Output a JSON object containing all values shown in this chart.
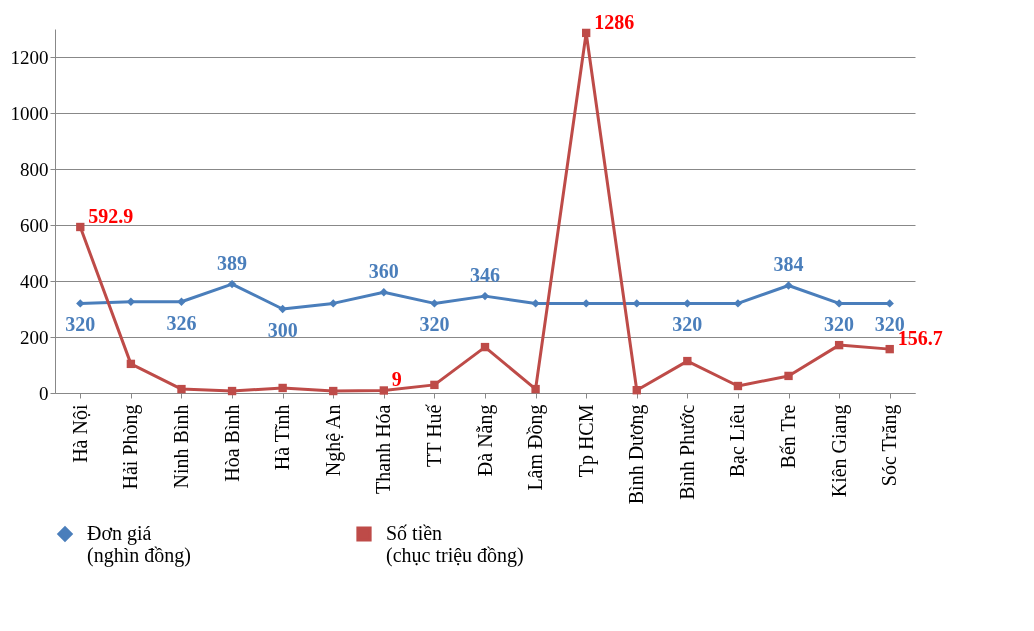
{
  "chart_data": {
    "type": "line",
    "categories": [
      "Hà Nội",
      "Hải Phòng",
      "Ninh Bình",
      "Hòa Bình",
      "Hà Tĩnh",
      "Nghệ An",
      "Thanh Hóa",
      "TT Huế",
      "Đà Nẵng",
      "Lâm Đồng",
      "Tp HCM",
      "Bình Dương",
      "Bình Phước",
      "Bạc Liêu",
      "Bến Tre",
      "Kiên Giang",
      "Sóc Trăng"
    ],
    "series": [
      {
        "name": "Đơn giá (nghìn đồng)",
        "color": "#4a7ebb",
        "marker": "diamond",
        "values": [
          320,
          326,
          326,
          389,
          300,
          320,
          360,
          320,
          346,
          320,
          320,
          320,
          320,
          320,
          384,
          320,
          320
        ],
        "value_labels": [
          "320",
          null,
          "326",
          "389",
          "300",
          null,
          "360",
          "320",
          "346",
          null,
          null,
          null,
          "320",
          null,
          "384",
          "320",
          "320"
        ]
      },
      {
        "name": "Số tiền (chục triệu đồng)",
        "color": "#be4b48",
        "marker": "square",
        "values": [
          592.9,
          104,
          14,
          7,
          18,
          7,
          9,
          29,
          164,
          14,
          1286,
          10,
          114,
          25,
          61,
          171,
          156.7
        ],
        "value_labels": [
          "592.9",
          null,
          null,
          null,
          null,
          null,
          "9",
          null,
          null,
          null,
          "1286",
          null,
          null,
          null,
          null,
          null,
          "156.7"
        ]
      }
    ],
    "ylim": [
      0,
      1300
    ],
    "yticks": [
      0,
      200,
      400,
      600,
      800,
      1000,
      1200
    ],
    "grid": "y",
    "legend": "bottom"
  }
}
